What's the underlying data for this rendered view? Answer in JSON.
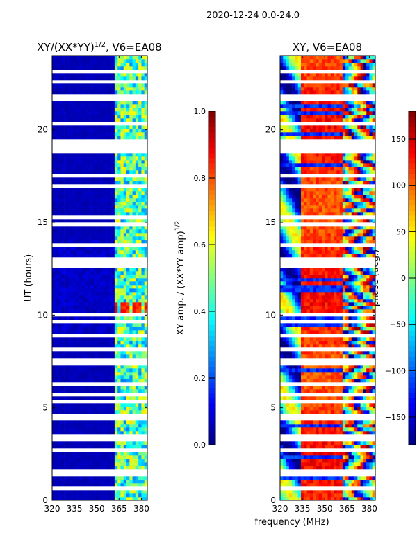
{
  "suptitle": "2020-12-24 0.0-24.0",
  "chart_data": [
    {
      "type": "heatmap",
      "title": "XY/(XX*YY)^1/2, V6=EA08",
      "title_main": "XY/(XX*YY)",
      "title_sup": "1/2",
      "title_tail": ", V6=EA08",
      "xlabel": "",
      "ylabel": "UT (hours)",
      "xlim": [
        320,
        384
      ],
      "ylim": [
        0,
        24
      ],
      "xticks": [
        320,
        335,
        350,
        365,
        380
      ],
      "yticks": [
        0,
        5,
        10,
        15,
        20
      ],
      "colormap": "jet",
      "colorbar": {
        "label_main": "XY amp. / (XX*YY amp)",
        "label_sup": "1/2",
        "range": [
          0,
          1
        ],
        "ticks": [
          "0.0",
          "0.2",
          "0.4",
          "0.6",
          "0.8",
          "1.0"
        ]
      },
      "description_model": {
        "background_value": 0.05,
        "rfi_band_MHz": [
          362,
          384
        ],
        "rfi_band_value": 0.45,
        "hotspot_hours": [
          10.0,
          10.6
        ],
        "hotspot_value": 0.85
      }
    },
    {
      "type": "heatmap",
      "title": "XY, V6=EA08",
      "xlabel": "frequency (MHz)",
      "ylabel": "",
      "xlim": [
        320,
        384
      ],
      "ylim": [
        0,
        24
      ],
      "xticks": [
        320,
        335,
        350,
        365,
        380
      ],
      "yticks": [
        0,
        5,
        10,
        15,
        20
      ],
      "colormap": "jet",
      "colorbar": {
        "label": "phase (deg.)",
        "range": [
          -180,
          180
        ],
        "ticks": [
          "150",
          "100",
          "50",
          "0",
          "−50",
          "−100",
          "−150"
        ],
        "tick_values": [
          150,
          100,
          50,
          0,
          -50,
          -100,
          -150
        ]
      },
      "description_model": {
        "low_band_phase_deg": -60,
        "mid_band_phase_deg": 120,
        "rfi_band_MHz": [
          362,
          384
        ]
      }
    }
  ],
  "flagged_hours": [
    0.6,
    1.5,
    2.8,
    3.2,
    3.5,
    4.4,
    4.6,
    5.4,
    5.8,
    6.2,
    7.5,
    8.1,
    8.9,
    9.6,
    10.0,
    12.6,
    12.8,
    13.0,
    13.7,
    14.9,
    15.2,
    16.9,
    17.6,
    18.8,
    19.0,
    19.2,
    19.4,
    20.4,
    21.7,
    21.9,
    22.6,
    23.2
  ]
}
